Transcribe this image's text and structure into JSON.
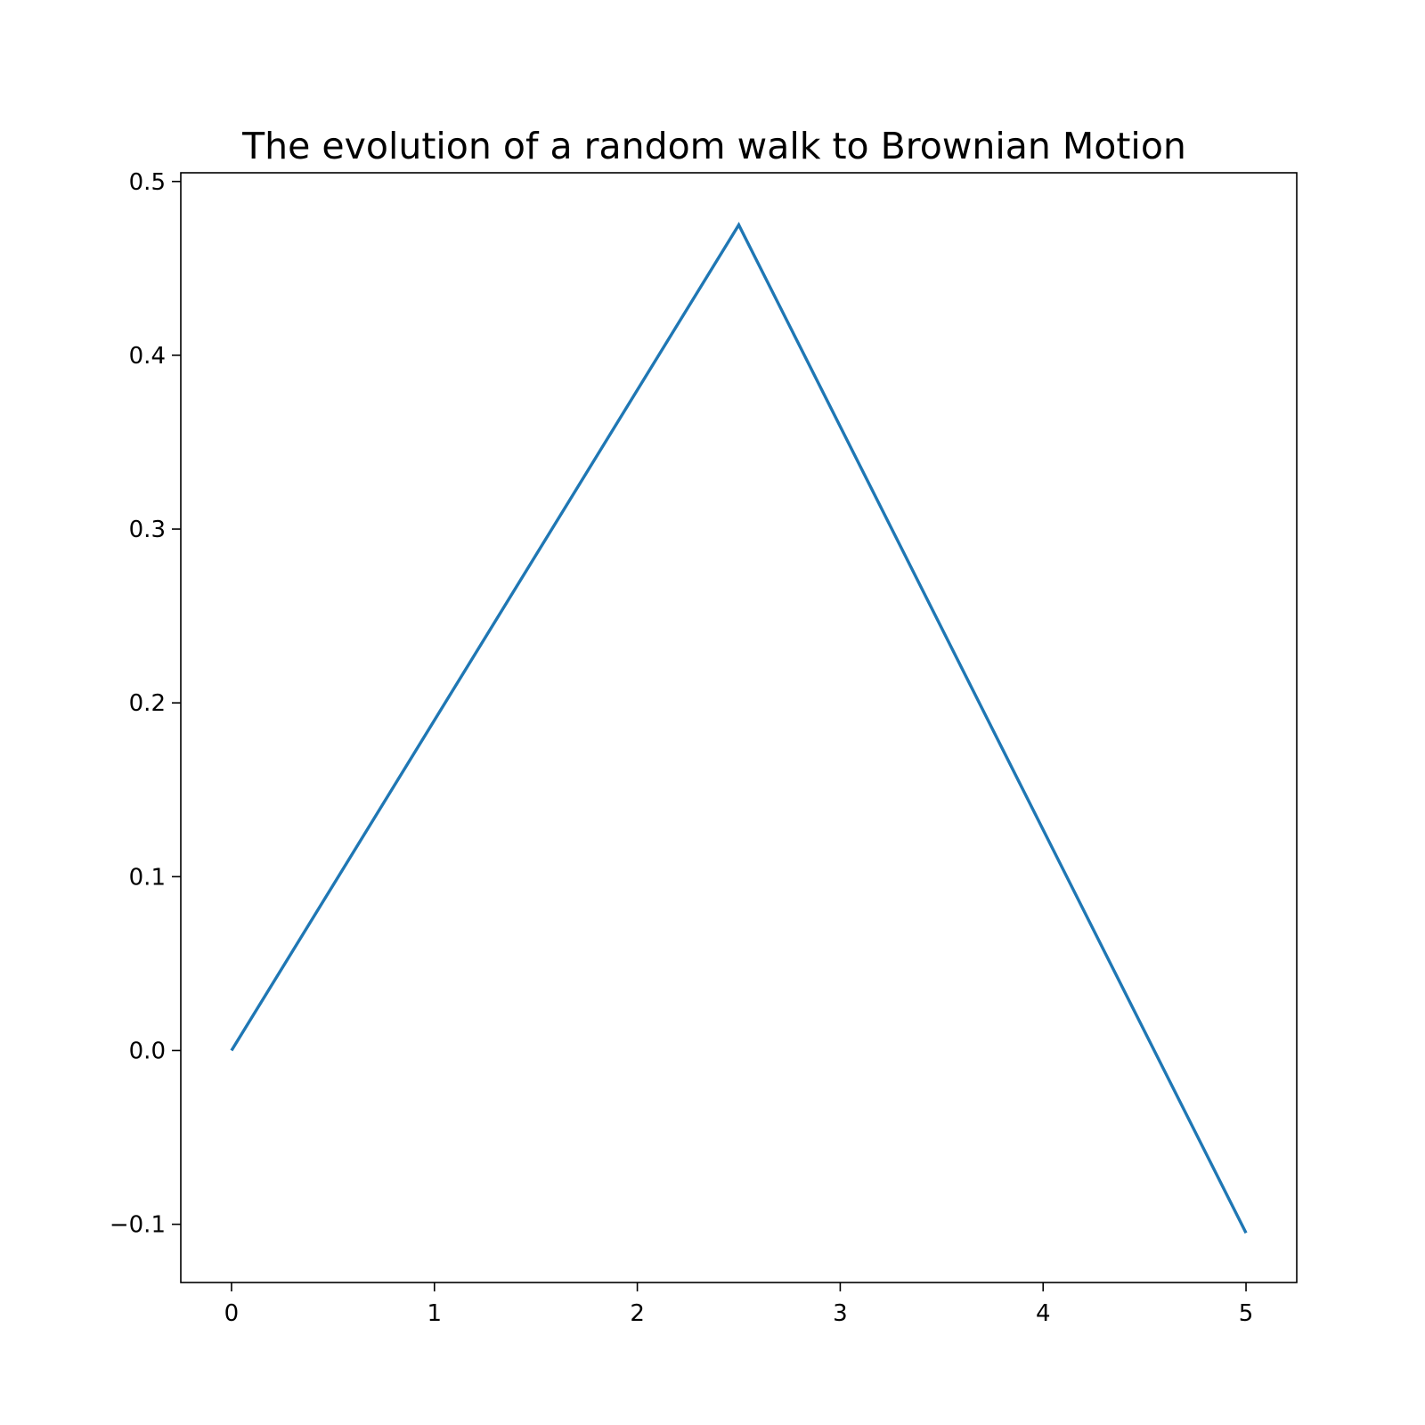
{
  "chart_data": {
    "type": "line",
    "title": "The evolution of a random walk to Brownian Motion",
    "xlabel": "",
    "ylabel": "",
    "xlim": [
      -0.25,
      5.25
    ],
    "ylim": [
      -0.1335,
      0.505
    ],
    "grid": false,
    "x_ticks": [
      0,
      1,
      2,
      3,
      4,
      5
    ],
    "x_tick_labels": [
      "0",
      "1",
      "2",
      "3",
      "4",
      "5"
    ],
    "y_ticks": [
      -0.1,
      0.0,
      0.1,
      0.2,
      0.3,
      0.4,
      0.5
    ],
    "y_tick_labels": [
      "−0.1",
      "0.0",
      "0.1",
      "0.2",
      "0.3",
      "0.4",
      "0.5"
    ],
    "series": [
      {
        "color": "#1f77b4",
        "x": [
          0,
          2.5,
          5
        ],
        "y": [
          0.0,
          0.475,
          -0.105
        ]
      }
    ]
  }
}
